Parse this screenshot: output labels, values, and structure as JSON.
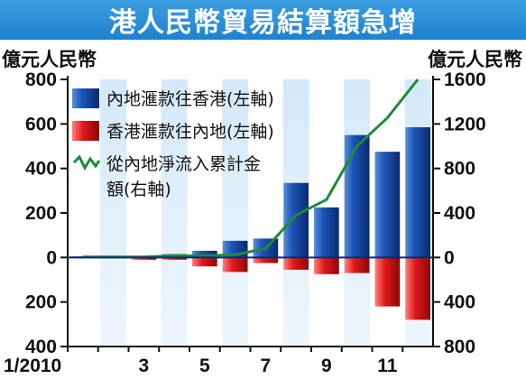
{
  "title": "港人民幣貿易結算額急增",
  "units": {
    "left": "億元人民幣",
    "right": "億元人民幣"
  },
  "colors": {
    "title_bg": "#2b8fd8",
    "inflow_bar": "#0b3a8c",
    "outflow_bar": "#d41414",
    "cumulative_line": "#1f8a3a",
    "shade": "#cfe6f8"
  },
  "chart_data": {
    "type": "bar",
    "months": [
      1,
      2,
      3,
      4,
      5,
      6,
      7,
      8,
      9,
      10,
      11,
      12
    ],
    "x_tick_labels": [
      "1/2010",
      "3",
      "5",
      "7",
      "9",
      "11"
    ],
    "x_tick_months": [
      1,
      3,
      5,
      7,
      9,
      11
    ],
    "series": [
      {
        "name": "內地滙款往香港(左軸)",
        "kind": "bar",
        "axis": "left",
        "values": [
          5,
          0,
          5,
          15,
          30,
          75,
          85,
          335,
          225,
          550,
          475,
          585
        ]
      },
      {
        "name": "香港滙款往內地(左軸)",
        "kind": "bar",
        "axis": "left",
        "values": [
          0,
          0,
          -10,
          -10,
          -40,
          -65,
          -25,
          -55,
          -75,
          -70,
          -220,
          -280
        ]
      },
      {
        "name": "從內地淨流入累計金額(右軸)",
        "kind": "line",
        "axis": "right",
        "values": [
          5,
          5,
          5,
          15,
          15,
          25,
          80,
          380,
          520,
          1000,
          1255,
          1600
        ]
      }
    ],
    "left_axis": {
      "ylim": [
        -400,
        800
      ],
      "ticks": [
        800,
        600,
        400,
        200,
        0,
        -200,
        -400
      ],
      "tick_labels": [
        "800",
        "600",
        "400",
        "200",
        "0",
        "200",
        "400"
      ]
    },
    "right_axis": {
      "ylim": [
        -800,
        1600
      ],
      "ticks": [
        1600,
        1200,
        800,
        400,
        0,
        -400,
        -800
      ],
      "tick_labels": [
        "1600",
        "1200",
        "800",
        "400",
        "0",
        "400",
        "800"
      ]
    },
    "legend_position": "top-left",
    "grid": false
  }
}
